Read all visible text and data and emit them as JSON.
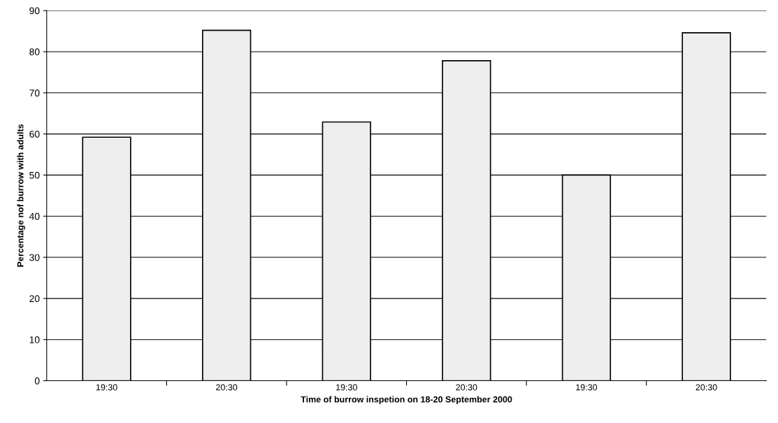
{
  "chart_data": {
    "type": "bar",
    "xlabel": "Time of burrow inspetion on 18-20 September 2000",
    "ylabel": "Percentage nof burrow with adults",
    "categories": [
      "19:30",
      "20:30",
      "19:30",
      "20:30",
      "19:30",
      "20:30"
    ],
    "values": [
      59.2,
      85.2,
      62.9,
      77.8,
      50.0,
      84.6
    ],
    "color": "#eeeeee",
    "ylim": [
      0,
      90
    ],
    "yticks": [
      0,
      10,
      20,
      30,
      40,
      50,
      60,
      70,
      80,
      90
    ],
    "grid": "y"
  }
}
